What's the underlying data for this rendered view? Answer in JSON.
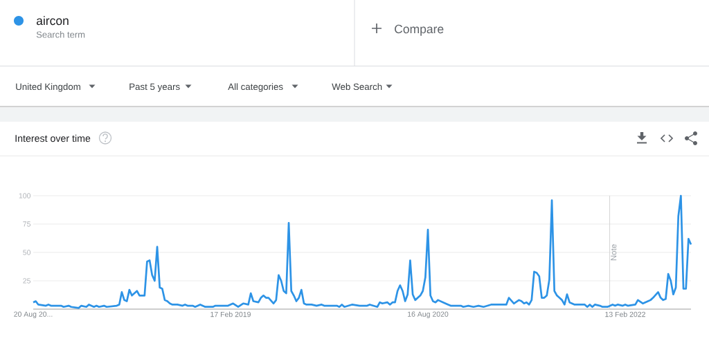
{
  "chart_data": {
    "type": "line",
    "title": "Interest over time",
    "annotations": [
      "Search term",
      "Compare",
      "United Kingdom",
      "Past 5 years",
      "All categories",
      "Web Search"
    ],
    "x": [
      "2017-08-20",
      "2017-08-27",
      "2017-09-03",
      "2017-09-24",
      "2017-10-01",
      "2017-10-08",
      "2017-11-05",
      "2017-11-12",
      "2017-11-26",
      "2017-12-03",
      "2017-12-24",
      "2017-12-31",
      "2018-01-14",
      "2018-01-21",
      "2018-02-04",
      "2018-02-11",
      "2018-02-18",
      "2018-03-04",
      "2018-03-11",
      "2018-04-08",
      "2018-04-15",
      "2018-04-22",
      "2018-04-29",
      "2018-05-06",
      "2018-05-13",
      "2018-05-20",
      "2018-06-03",
      "2018-06-10",
      "2018-06-24",
      "2018-07-01",
      "2018-07-08",
      "2018-07-15",
      "2018-07-22",
      "2018-07-29",
      "2018-08-05",
      "2018-08-12",
      "2018-08-19",
      "2018-08-26",
      "2018-09-02",
      "2018-09-09",
      "2018-09-23",
      "2018-10-07",
      "2018-10-14",
      "2018-10-21",
      "2018-11-04",
      "2018-11-11",
      "2018-11-25",
      "2018-12-09",
      "2018-12-30",
      "2019-01-06",
      "2019-02-10",
      "2019-02-24",
      "2019-03-10",
      "2019-03-24",
      "2019-04-07",
      "2019-04-14",
      "2019-04-21",
      "2019-05-05",
      "2019-05-12",
      "2019-05-19",
      "2019-05-26",
      "2019-06-02",
      "2019-06-16",
      "2019-06-23",
      "2019-06-30",
      "2019-07-07",
      "2019-07-14",
      "2019-07-21",
      "2019-07-28",
      "2019-08-04",
      "2019-08-11",
      "2019-08-18",
      "2019-08-25",
      "2019-09-01",
      "2019-09-08",
      "2019-09-15",
      "2019-09-29",
      "2019-10-13",
      "2019-10-27",
      "2019-11-03",
      "2019-12-08",
      "2019-12-15",
      "2019-12-22",
      "2019-12-29",
      "2020-01-19",
      "2020-02-09",
      "2020-03-01",
      "2020-03-08",
      "2020-03-29",
      "2020-04-05",
      "2020-04-12",
      "2020-04-26",
      "2020-05-03",
      "2020-05-10",
      "2020-05-17",
      "2020-05-24",
      "2020-05-31",
      "2020-06-07",
      "2020-06-14",
      "2020-06-21",
      "2020-06-28",
      "2020-07-05",
      "2020-07-12",
      "2020-07-19",
      "2020-07-26",
      "2020-08-02",
      "2020-08-09",
      "2020-08-16",
      "2020-08-23",
      "2020-08-30",
      "2020-09-06",
      "2020-09-13",
      "2020-09-27",
      "2020-10-11",
      "2020-10-18",
      "2020-11-15",
      "2020-11-22",
      "2020-12-06",
      "2020-12-20",
      "2021-01-03",
      "2021-01-17",
      "2021-02-07",
      "2021-02-28",
      "2021-03-21",
      "2021-03-28",
      "2021-04-11",
      "2021-04-25",
      "2021-05-02",
      "2021-05-09",
      "2021-05-16",
      "2021-05-23",
      "2021-05-30",
      "2021-06-06",
      "2021-06-13",
      "2021-06-20",
      "2021-06-27",
      "2021-07-04",
      "2021-07-11",
      "2021-07-18",
      "2021-07-25",
      "2021-08-01",
      "2021-08-08",
      "2021-08-15",
      "2021-08-22",
      "2021-08-29",
      "2021-09-05",
      "2021-09-12",
      "2021-09-26",
      "2021-10-24",
      "2021-10-31",
      "2021-11-07",
      "2021-11-14",
      "2021-11-21",
      "2021-12-05",
      "2021-12-12",
      "2021-12-26",
      "2022-01-09",
      "2022-01-16",
      "2022-01-23",
      "2022-02-06",
      "2022-02-13",
      "2022-02-20",
      "2022-03-13",
      "2022-03-20",
      "2022-04-03",
      "2022-04-17",
      "2022-04-24",
      "2022-05-01",
      "2022-05-15",
      "2022-05-22",
      "2022-05-29",
      "2022-06-05",
      "2022-06-12",
      "2022-06-19",
      "2022-06-26",
      "2022-07-03",
      "2022-07-10",
      "2022-07-17",
      "2022-07-24",
      "2022-07-31",
      "2022-08-07",
      "2022-08-14"
    ],
    "series": [
      {
        "name": "aircon",
        "color": "#2d93e6",
        "values": [
          6,
          7,
          4,
          3,
          4,
          3,
          3,
          2,
          3,
          2,
          1,
          3,
          2,
          4,
          2,
          3,
          2,
          3,
          2,
          3,
          4,
          15,
          8,
          7,
          17,
          12,
          16,
          12,
          12,
          42,
          43,
          30,
          25,
          55,
          19,
          18,
          8,
          7,
          5,
          4,
          4,
          3,
          4,
          3,
          3,
          2,
          4,
          2,
          2,
          3,
          3,
          5,
          2,
          5,
          4,
          14,
          7,
          6,
          10,
          12,
          10,
          10,
          5,
          8,
          30,
          25,
          16,
          14,
          76,
          16,
          12,
          7,
          10,
          17,
          5,
          4,
          4,
          3,
          4,
          3,
          3,
          2,
          4,
          2,
          4,
          3,
          3,
          4,
          2,
          6,
          5,
          6,
          4,
          6,
          6,
          16,
          21,
          16,
          7,
          13,
          43,
          13,
          8,
          10,
          12,
          16,
          28,
          70,
          12,
          7,
          6,
          8,
          6,
          4,
          3,
          3,
          2,
          3,
          2,
          3,
          2,
          4,
          4,
          4,
          10,
          5,
          8,
          7,
          5,
          6,
          4,
          8,
          33,
          32,
          29,
          10,
          10,
          12,
          26,
          96,
          16,
          12,
          10,
          8,
          4,
          13,
          6,
          4,
          4,
          2,
          4,
          2,
          4,
          3,
          2,
          2,
          4,
          3,
          4,
          3,
          4,
          3,
          4,
          8,
          5,
          7,
          8,
          10,
          15,
          10,
          8,
          9,
          31,
          25,
          13,
          19,
          82,
          100,
          18,
          18,
          62,
          57
        ]
      }
    ],
    "xlim": [
      "2017-08-20",
      "2022-08-14"
    ],
    "ylim": [
      0,
      100
    ],
    "xticks": [
      {
        "value": "2017-08-20",
        "label": "20 Aug 20..."
      },
      {
        "value": "2019-02-17",
        "label": "17 Feb 2019"
      },
      {
        "value": "2020-08-16",
        "label": "16 Aug 2020"
      },
      {
        "value": "2022-02-13",
        "label": "13 Feb 2022"
      }
    ],
    "yticks": [
      25,
      50,
      75,
      100
    ],
    "ref_lines": [
      {
        "axis": "x",
        "value": "2022-01-01",
        "label": "Note",
        "color": "#d4d4d4"
      }
    ],
    "grid": "y",
    "legend": "top left"
  }
}
